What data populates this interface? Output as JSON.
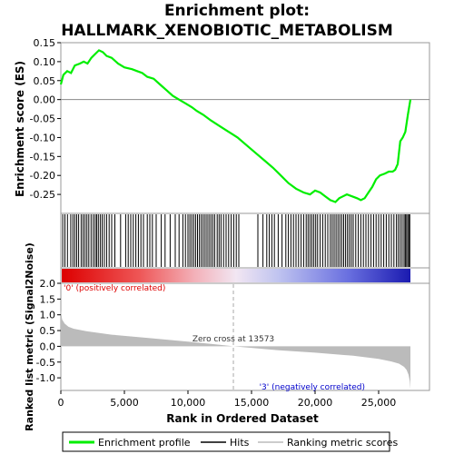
{
  "title_line1": "Enrichment plot:",
  "title_line2": "HALLMARK_XENOBIOTIC_METABOLISM",
  "chart_data": {
    "type": "line",
    "es_panel": {
      "ylabel": "Enrichment score (ES)",
      "ylim": [
        -0.3,
        0.15
      ],
      "yticks": [
        "0.15",
        "0.10",
        "0.05",
        "0.00",
        "-0.05",
        "-0.10",
        "-0.15",
        "-0.20",
        "-0.25"
      ],
      "ytick_values": [
        0.15,
        0.1,
        0.05,
        0.0,
        -0.05,
        -0.1,
        -0.15,
        -0.2,
        -0.25
      ],
      "series": [
        {
          "name": "Enrichment profile",
          "color": "#00ee00",
          "x": [
            0,
            200,
            500,
            800,
            1100,
            1500,
            1800,
            2100,
            2400,
            2700,
            3000,
            3300,
            3600,
            4000,
            4500,
            5000,
            5600,
            6000,
            6400,
            6800,
            7300,
            7800,
            8300,
            8800,
            9300,
            9800,
            10300,
            10700,
            11200,
            11800,
            12500,
            13200,
            13900,
            14600,
            15300,
            16000,
            16700,
            17300,
            17900,
            18500,
            19100,
            19600,
            20000,
            20400,
            20800,
            21200,
            21600,
            21900,
            22200,
            22500,
            22900,
            23300,
            23600,
            23900,
            24200,
            24500,
            24800,
            25100,
            25500,
            25800,
            26100,
            26300,
            26500,
            26700,
            26900,
            27100,
            27300,
            27500
          ],
          "y": [
            0.04,
            0.065,
            0.075,
            0.07,
            0.09,
            0.095,
            0.1,
            0.095,
            0.11,
            0.12,
            0.13,
            0.125,
            0.115,
            0.11,
            0.095,
            0.085,
            0.08,
            0.075,
            0.07,
            0.06,
            0.055,
            0.04,
            0.025,
            0.01,
            0.0,
            -0.01,
            -0.02,
            -0.03,
            -0.04,
            -0.055,
            -0.07,
            -0.085,
            -0.1,
            -0.12,
            -0.14,
            -0.16,
            -0.18,
            -0.2,
            -0.22,
            -0.235,
            -0.245,
            -0.25,
            -0.24,
            -0.245,
            -0.255,
            -0.265,
            -0.27,
            -0.26,
            -0.255,
            -0.25,
            -0.255,
            -0.26,
            -0.265,
            -0.26,
            -0.245,
            -0.23,
            -0.21,
            -0.2,
            -0.195,
            -0.19,
            -0.19,
            -0.185,
            -0.17,
            -0.11,
            -0.1,
            -0.085,
            -0.04,
            0.0
          ]
        }
      ]
    },
    "hits": {
      "label": "Hits",
      "positions": [
        150,
        320,
        520,
        780,
        950,
        1100,
        1250,
        1400,
        1600,
        1750,
        1900,
        2050,
        2200,
        2380,
        2550,
        2700,
        2820,
        2950,
        3100,
        3250,
        3420,
        3600,
        3800,
        4000,
        4250,
        4700,
        5100,
        5300,
        5500,
        5700,
        5900,
        6100,
        6300,
        6500,
        6800,
        7000,
        7200,
        7500,
        7900,
        8200,
        8600,
        9000,
        9300,
        9600,
        9800,
        10000,
        10150,
        10300,
        10450,
        10600,
        10750,
        10900,
        11050,
        11200,
        11350,
        11500,
        11650,
        11800,
        11950,
        12100,
        12300,
        12450,
        12600,
        12800,
        13000,
        13200,
        13400,
        13600,
        13800,
        14000,
        15500,
        15900,
        16200,
        16400,
        16600,
        16800,
        17100,
        17400,
        17700,
        17900,
        18100,
        18300,
        18500,
        18700,
        18900,
        19100,
        19300,
        19450,
        19600,
        19750,
        19900,
        20050,
        20200,
        20400,
        20600,
        20800,
        21000,
        21200,
        21350,
        21500,
        21650,
        21800,
        21950,
        22100,
        22250,
        22400,
        22550,
        22700,
        22850,
        23000,
        23200,
        23400,
        23600,
        23800,
        24000,
        24200,
        24400,
        24600,
        24800,
        25000,
        25200,
        25400,
        25600,
        25800,
        26000,
        26200,
        26400,
        26550,
        26700,
        26850,
        27000,
        27100,
        27200,
        27300,
        27400,
        27450
      ]
    },
    "metric_panel": {
      "ylabel": "Ranked list metric (Signal2Noise)",
      "xlabel": "Rank in Ordered Dataset",
      "ylim": [
        -1.4,
        2.0
      ],
      "yticks": [
        "2.0",
        "1.5",
        "1.0",
        "0.5",
        "0.0",
        "-0.5",
        "-1.0"
      ],
      "ytick_values": [
        2.0,
        1.5,
        1.0,
        0.5,
        0.0,
        -0.5,
        -1.0
      ],
      "xlim": [
        0,
        29000
      ],
      "xticks": [
        "0",
        "5,000",
        "10,000",
        "15,000",
        "20,000",
        "25,000"
      ],
      "xtick_values": [
        0,
        5000,
        10000,
        15000,
        20000,
        25000
      ],
      "n_genes": 27500,
      "x": [
        0,
        100,
        300,
        600,
        1000,
        2000,
        4000,
        7000,
        10000,
        12000,
        13573,
        15000,
        17000,
        20000,
        23000,
        25000,
        26000,
        26600,
        27000,
        27200,
        27350,
        27450,
        27500
      ],
      "y": [
        1.15,
        0.85,
        0.72,
        0.62,
        0.56,
        0.48,
        0.37,
        0.26,
        0.15,
        0.07,
        0.0,
        -0.05,
        -0.12,
        -0.2,
        -0.3,
        -0.4,
        -0.48,
        -0.55,
        -0.65,
        -0.75,
        -0.9,
        -1.1,
        -1.35
      ],
      "zero_cross_label": "Zero cross at 13573",
      "zero_cross_value": 13573,
      "pos_label": "'0' (positively correlated)",
      "neg_label": "'3' (negatively correlated)",
      "pos_color": "#dd0000",
      "neg_color": "#0000cc"
    },
    "legend": [
      {
        "label": "Enrichment profile",
        "color": "#00ee00"
      },
      {
        "label": "Hits",
        "color": "#000000"
      },
      {
        "label": "Ranking metric scores",
        "color": "#bbbbbb"
      }
    ]
  }
}
